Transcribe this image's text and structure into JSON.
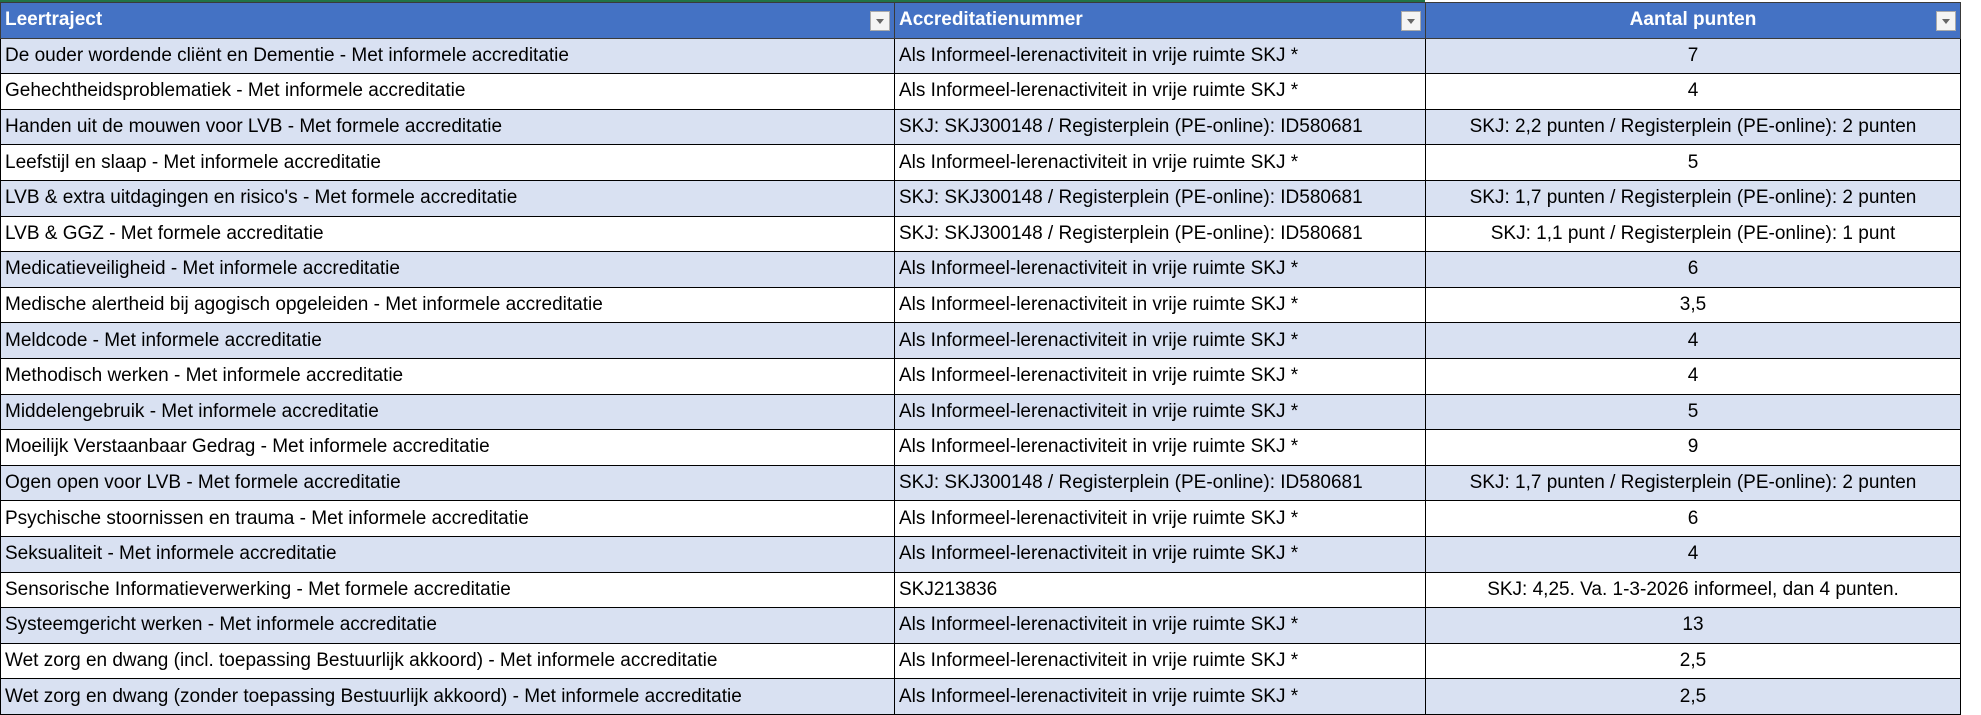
{
  "headers": [
    "Leertraject",
    "Accreditatienummer",
    "Aantal punten"
  ],
  "colors": {
    "header_bg": "#4472c4",
    "band_bg": "#d9e1f2"
  },
  "rows": [
    [
      "De ouder wordende cliënt en Dementie - Met informele accreditatie",
      "Als Informeel-lerenactiviteit in vrije ruimte SKJ *",
      "7"
    ],
    [
      "Gehechtheidsproblematiek - Met informele accreditatie",
      "Als Informeel-lerenactiviteit in vrije ruimte SKJ *",
      "4"
    ],
    [
      "Handen uit de mouwen voor LVB - Met formele accreditatie",
      "SKJ: SKJ300148 / Registerplein (PE-online): ID580681",
      "SKJ: 2,2 punten / Registerplein (PE-online): 2 punten"
    ],
    [
      "Leefstijl en slaap - Met informele accreditatie",
      "Als Informeel-lerenactiviteit in vrije ruimte SKJ *",
      "5"
    ],
    [
      "LVB & extra uitdagingen en risico's - Met formele accreditatie",
      "SKJ: SKJ300148 / Registerplein (PE-online): ID580681",
      "SKJ: 1,7 punten / Registerplein (PE-online): 2 punten"
    ],
    [
      "LVB & GGZ - Met formele accreditatie",
      "SKJ: SKJ300148 / Registerplein (PE-online): ID580681",
      "SKJ: 1,1 punt / Registerplein (PE-online): 1 punt"
    ],
    [
      "Medicatieveiligheid - Met informele accreditatie",
      "Als Informeel-lerenactiviteit in vrije ruimte SKJ *",
      "6"
    ],
    [
      "Medische alertheid bij agogisch opgeleiden - Met informele accreditatie",
      "Als Informeel-lerenactiviteit in vrije ruimte SKJ *",
      "3,5"
    ],
    [
      "Meldcode - Met informele accreditatie",
      "Als Informeel-lerenactiviteit in vrije ruimte SKJ *",
      "4"
    ],
    [
      "Methodisch werken - Met informele accreditatie",
      "Als Informeel-lerenactiviteit in vrije ruimte SKJ *",
      "4"
    ],
    [
      "Middelengebruik - Met informele accreditatie",
      "Als Informeel-lerenactiviteit in vrije ruimte SKJ *",
      "5"
    ],
    [
      "Moeilijk Verstaanbaar Gedrag - Met informele accreditatie",
      "Als Informeel-lerenactiviteit in vrije ruimte SKJ *",
      "9"
    ],
    [
      "Ogen open voor LVB - Met formele accreditatie",
      "SKJ: SKJ300148 / Registerplein (PE-online): ID580681",
      "SKJ: 1,7 punten / Registerplein (PE-online): 2 punten"
    ],
    [
      "Psychische stoornissen en trauma - Met informele accreditatie",
      "Als Informeel-lerenactiviteit in vrije ruimte SKJ *",
      "6"
    ],
    [
      "Seksualiteit - Met informele accreditatie",
      "Als Informeel-lerenactiviteit in vrije ruimte SKJ *",
      "4"
    ],
    [
      "Sensorische Informatieverwerking - Met formele accreditatie",
      "SKJ213836",
      "SKJ: 4,25. Va. 1-3-2026 informeel, dan 4 punten."
    ],
    [
      "Systeemgericht werken - Met informele accreditatie",
      "Als Informeel-lerenactiviteit in vrije ruimte SKJ *",
      "13"
    ],
    [
      "Wet zorg en dwang (incl. toepassing Bestuurlijk akkoord) - Met informele accreditatie",
      "Als Informeel-lerenactiviteit in vrije ruimte SKJ *",
      "2,5"
    ],
    [
      "Wet zorg en dwang (zonder toepassing Bestuurlijk akkoord) - Met informele accreditatie",
      "Als Informeel-lerenactiviteit in vrije ruimte SKJ *",
      "2,5"
    ]
  ]
}
